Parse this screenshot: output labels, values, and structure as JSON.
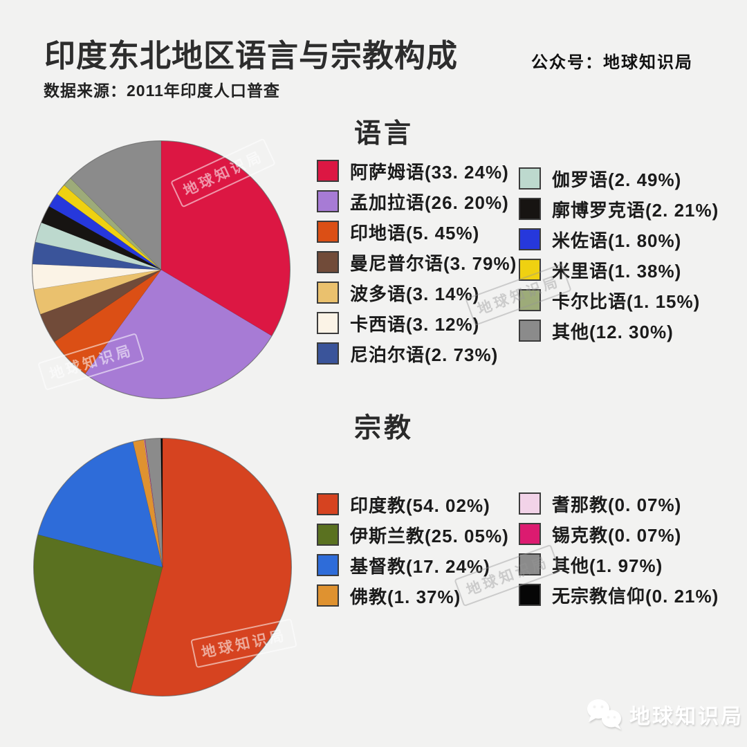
{
  "header": {
    "title": "印度东北地区语言与宗教构成",
    "account": "公众号：地球知识局",
    "source": "数据来源：2011年印度人口普查"
  },
  "watermark": {
    "text": "地球知识局"
  },
  "footer": {
    "brand": "地球知识局",
    "icon": "wechat-logo-icon"
  },
  "colors": {
    "background": "#F2F2F1",
    "swatch_border": "#3B3B3B",
    "title_text": "#2D2D2D"
  },
  "chart_data": [
    {
      "type": "pie",
      "title": "语言",
      "start_angle": "12 o'clock",
      "direction": "clockwise",
      "legend_position": "right, two columns",
      "slices": [
        {
          "label": "阿萨姆语",
          "value": 33.24,
          "color": "#DC1743"
        },
        {
          "label": "孟加拉语",
          "value": 26.2,
          "color": "#A77BD5"
        },
        {
          "label": "印地语",
          "value": 5.45,
          "color": "#DB4F15"
        },
        {
          "label": "曼尼普尔语",
          "value": 3.79,
          "color": "#714B39"
        },
        {
          "label": "波多语",
          "value": 3.14,
          "color": "#EAC16E"
        },
        {
          "label": "卡西语",
          "value": 3.12,
          "color": "#FBF3E6"
        },
        {
          "label": "尼泊尔语",
          "value": 2.73,
          "color": "#3A549A"
        },
        {
          "label": "伽罗语",
          "value": 2.49,
          "color": "#BDD9CE"
        },
        {
          "label": "廓博罗克语",
          "value": 2.21,
          "color": "#171412"
        },
        {
          "label": "米佐语",
          "value": 1.8,
          "color": "#2638DC"
        },
        {
          "label": "米里语",
          "value": 1.38,
          "color": "#EFD111"
        },
        {
          "label": "卡尔比语",
          "value": 1.15,
          "color": "#9DAB79"
        },
        {
          "label": "其他",
          "value": 12.3,
          "color": "#8B8B8B"
        }
      ]
    },
    {
      "type": "pie",
      "title": "宗教",
      "start_angle": "12 o'clock",
      "direction": "clockwise",
      "legend_position": "right, two columns",
      "slices": [
        {
          "label": "印度教",
          "value": 54.02,
          "color": "#D64320"
        },
        {
          "label": "伊斯兰教",
          "value": 25.05,
          "color": "#5A7120"
        },
        {
          "label": "基督教",
          "value": 17.24,
          "color": "#2E6CD9"
        },
        {
          "label": "佛教",
          "value": 1.37,
          "color": "#DF9230"
        },
        {
          "label": "耆那教",
          "value": 0.07,
          "color": "#F2D3E8"
        },
        {
          "label": "锡克教",
          "value": 0.07,
          "color": "#DC1B70"
        },
        {
          "label": "其他",
          "value": 1.97,
          "color": "#8B8B8B"
        },
        {
          "label": "无宗教信仰",
          "value": 0.21,
          "color": "#060606"
        }
      ]
    }
  ]
}
